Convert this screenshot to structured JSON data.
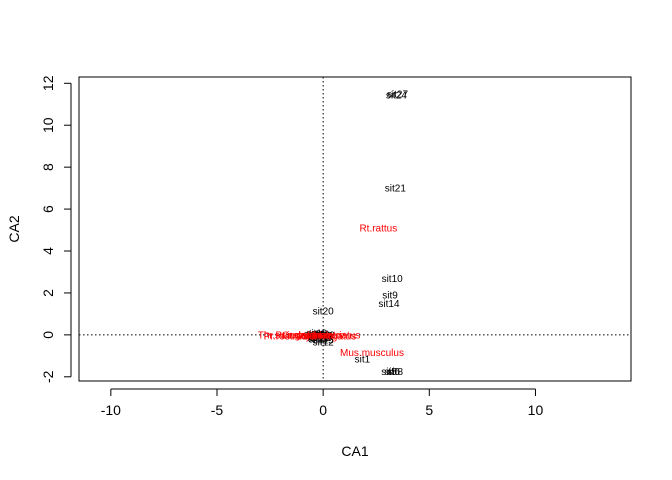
{
  "chart_data": {
    "type": "scatter",
    "xlabel": "CA1",
    "ylabel": "CA2",
    "xlim": [
      -11.5,
      14.5
    ],
    "ylim": [
      -2.2,
      12.3
    ],
    "x_ticks": [
      -10,
      -5,
      0,
      5,
      10
    ],
    "y_ticks": [
      -2,
      0,
      2,
      4,
      6,
      8,
      10,
      12
    ],
    "x_tick_labels": [
      "-10",
      "-5",
      "0",
      "5",
      "10"
    ],
    "y_tick_labels": [
      "-2",
      "0",
      "2",
      "4",
      "6",
      "8",
      "10",
      "12"
    ],
    "reference_lines": {
      "x": 0,
      "y": 0,
      "style": "dotted"
    },
    "colors": {
      "sites": "#000000",
      "species": "#ff0000"
    },
    "sites": [
      {
        "label": "sit27",
        "x": 3.5,
        "y": 11.5
      },
      {
        "label": "sit24",
        "x": 3.45,
        "y": 11.45
      },
      {
        "label": "sit21",
        "x": 3.4,
        "y": 7.0
      },
      {
        "label": "sit10",
        "x": 3.25,
        "y": 2.7
      },
      {
        "label": "sit9",
        "x": 3.15,
        "y": 1.9
      },
      {
        "label": "sit14",
        "x": 3.1,
        "y": 1.5
      },
      {
        "label": "sit20",
        "x": 0.0,
        "y": 1.15
      },
      {
        "label": "sit1",
        "x": 1.85,
        "y": -1.15
      },
      {
        "label": "sit12",
        "x": 0.0,
        "y": -0.35
      },
      {
        "label": "sit5",
        "x": 3.1,
        "y": -1.75
      },
      {
        "label": "sit6",
        "x": 3.25,
        "y": -1.75
      },
      {
        "label": "sit8",
        "x": 3.4,
        "y": -1.75
      },
      {
        "label": "sit2",
        "x": -0.3,
        "y": 0.02
      },
      {
        "label": "sit3",
        "x": -0.2,
        "y": -0.05
      },
      {
        "label": "sit4",
        "x": -0.1,
        "y": 0.05
      },
      {
        "label": "sit7",
        "x": -0.35,
        "y": -0.1
      },
      {
        "label": "sit11",
        "x": -0.25,
        "y": -0.15
      },
      {
        "label": "sit13",
        "x": -0.15,
        "y": 0.0
      },
      {
        "label": "sit15",
        "x": -0.05,
        "y": -0.05
      },
      {
        "label": "sit16",
        "x": -0.4,
        "y": 0.05
      },
      {
        "label": "sit17",
        "x": -0.2,
        "y": -0.2
      },
      {
        "label": "sit18",
        "x": 0.05,
        "y": 0.0
      },
      {
        "label": "sit19",
        "x": -0.3,
        "y": 0.1
      },
      {
        "label": "sit22",
        "x": -0.1,
        "y": -0.12
      },
      {
        "label": "sit23",
        "x": -0.45,
        "y": -0.05
      },
      {
        "label": "sit25",
        "x": 0.0,
        "y": -0.25
      },
      {
        "label": "sit26",
        "x": -0.25,
        "y": 0.0
      }
    ],
    "species": [
      {
        "label": "Rt.rattus",
        "x": 2.6,
        "y": 5.1
      },
      {
        "label": "Mus.musculus",
        "x": 2.3,
        "y": -0.85
      },
      {
        "label": "Thr.swinderianus",
        "x": -1.3,
        "y": 0.0
      },
      {
        "label": "Pr.natalensis",
        "x": -0.9,
        "y": 0.0
      },
      {
        "label": "Cr.gambianus",
        "x": -0.5,
        "y": 0.0
      },
      {
        "label": "Hy.trivirgatus",
        "x": 0.2,
        "y": -0.05
      },
      {
        "label": "Lm.striatus",
        "x": 0.6,
        "y": 0.0
      },
      {
        "label": "Pr.rostratus",
        "x": -1.6,
        "y": -0.05
      }
    ]
  }
}
